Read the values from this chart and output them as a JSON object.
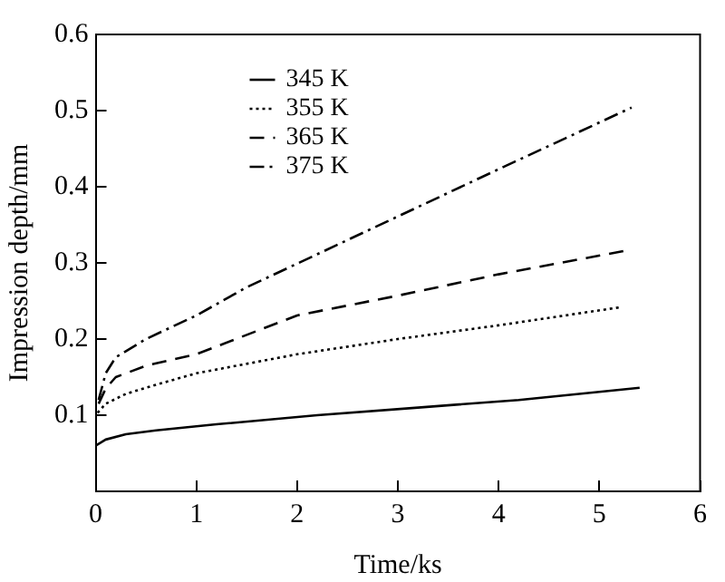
{
  "chart_data": {
    "type": "line",
    "xlabel": "Time/ks",
    "ylabel": "Impression depth/mm",
    "xlim": [
      0,
      6
    ],
    "xticks": [
      0,
      1,
      2,
      3,
      4,
      5,
      6
    ],
    "ylim": [
      0,
      0.6
    ],
    "yticks": [
      {
        "value": 0,
        "label": null
      },
      0.1,
      0.2,
      0.3,
      0.4,
      0.5,
      0.6
    ],
    "grid": false,
    "legend": "top left",
    "marker": "none",
    "series": [
      {
        "name": "345 K",
        "color": "#000000",
        "line_style": "solid",
        "x": [
          0,
          0.1,
          0.3,
          0.6,
          1.2,
          2.2,
          3.2,
          4.2,
          5.4
        ],
        "values": [
          0.06,
          0.068,
          0.075,
          0.08,
          0.088,
          0.1,
          0.11,
          0.12,
          0.136
        ]
      },
      {
        "name": "355 K",
        "color": "#000000",
        "line_style": "dotted",
        "x": [
          0.02,
          0.1,
          0.3,
          0.6,
          1,
          2,
          3,
          4,
          5.22
        ],
        "values": [
          0.103,
          0.115,
          0.128,
          0.14,
          0.155,
          0.18,
          0.2,
          0.218,
          0.242
        ]
      },
      {
        "name": "365 K",
        "color": "#000000",
        "line_style": "dashed",
        "x": [
          0.03,
          0.1,
          0.2,
          0.5,
          1,
          2,
          3,
          4,
          5.26
        ],
        "values": [
          0.115,
          0.135,
          0.15,
          0.165,
          0.18,
          0.231,
          0.257,
          0.285,
          0.316
        ]
      },
      {
        "name": "375 K",
        "color": "#000000",
        "line_style": "dashdot",
        "x": [
          0.03,
          0.1,
          0.2,
          0.5,
          1,
          1.5,
          2,
          3,
          4,
          5.32
        ],
        "values": [
          0.12,
          0.155,
          0.176,
          0.2,
          0.231,
          0.268,
          0.299,
          0.361,
          0.423,
          0.504
        ]
      }
    ]
  }
}
